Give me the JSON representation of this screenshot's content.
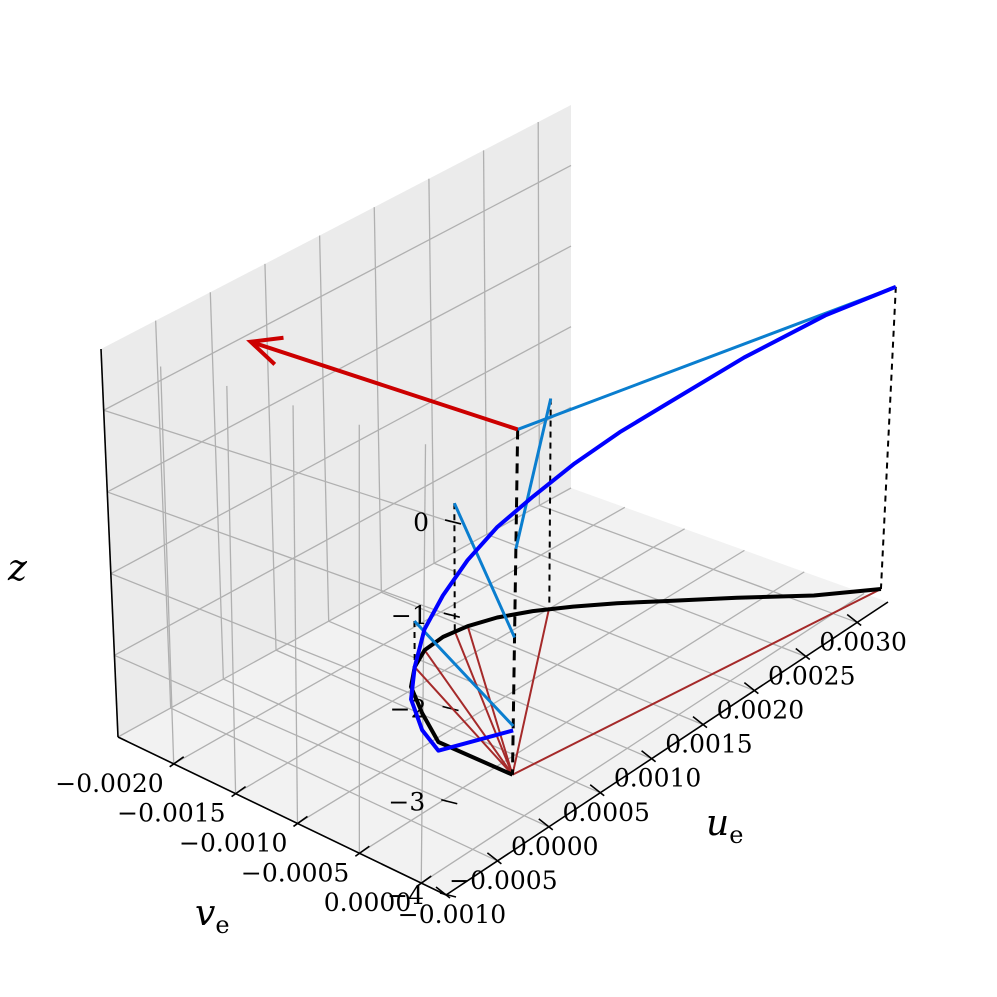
{
  "chart_data": {
    "type": "line3d",
    "xlabel": {
      "main": "u",
      "sub": "e"
    },
    "ylabel": {
      "main": "v",
      "sub": "e"
    },
    "zlabel": "z",
    "x_ticks": [
      "−0.0010",
      "−0.0005",
      "0.0000",
      "0.0005",
      "0.0010",
      "0.0015",
      "0.0020",
      "0.0025",
      "0.0030"
    ],
    "y_ticks": [
      "0.0000",
      "−0.0005",
      "−0.0010",
      "−0.0015",
      "−0.0020"
    ],
    "z_ticks": [
      "0",
      "−1",
      "−2",
      "−3",
      "−4"
    ],
    "xlim": [
      -0.001,
      0.0033
    ],
    "ylim": [
      -0.00245,
      0.0002
    ],
    "zlim": [
      -4,
      0.75
    ],
    "grid": true,
    "colors": {
      "spiral": "#0000ff",
      "projection": "#000000",
      "vectors": "#0a7ecf",
      "hodograph_rays": "#a52a2a",
      "surface_arrow": "#cc0000"
    },
    "series": [
      {
        "role": "current-spiral",
        "u": [
          0.0,
          0.0,
          0.0002,
          0.0004,
          0.0006,
          0.0008,
          0.001,
          0.0012,
          0.0014,
          0.0016,
          0.0018,
          0.002,
          0.0022,
          0.0025,
          0.0028,
          0.0031
        ],
        "v": [
          -0.0001,
          -0.0007,
          -0.001,
          -0.00126,
          -0.0014,
          -0.00149,
          -0.00151,
          -0.00148,
          -0.00141,
          -0.00129,
          -0.00113,
          -0.00094,
          -0.00072,
          -0.00038,
          0.0,
          0.0003
        ],
        "z": [
          -3.1,
          -3.7,
          -3.8,
          -3.75,
          -3.6,
          -3.35,
          -3.1,
          -2.8,
          -2.5,
          -2.2,
          -1.85,
          -1.5,
          -1.15,
          -0.6,
          -0.05,
          0.3
        ]
      },
      {
        "role": "surface-projection",
        "u": [
          0.0,
          0.0,
          0.0002,
          0.0004,
          0.0006,
          0.0008,
          0.001,
          0.0012,
          0.0014,
          0.0016,
          0.0018,
          0.002,
          0.0022,
          0.0025,
          0.0028,
          0.0031
        ],
        "v": [
          -0.0001,
          -0.0007,
          -0.001,
          -0.00126,
          -0.0014,
          -0.00149,
          -0.00151,
          -0.00148,
          -0.00141,
          -0.00129,
          -0.00113,
          -0.00094,
          -0.00072,
          -0.00038,
          0.0,
          0.0003
        ],
        "z": [
          -3.6,
          -3.6,
          -3.6,
          -3.6,
          -3.6,
          -3.6,
          -3.6,
          -3.6,
          -3.6,
          -3.6,
          -3.6,
          -3.6,
          -3.6,
          -3.6,
          -3.6,
          -3.6
        ]
      }
    ],
    "depth_samples": [
      {
        "u": 0.0031,
        "v": 0.0003,
        "z": 0.3
      },
      {
        "u": 0.0017,
        "v": -0.00124,
        "z": -1.05
      },
      {
        "u": 0.0011,
        "v": -0.0015,
        "z": -2.05
      },
      {
        "u": 0.0006,
        "v": -0.0014,
        "z": -3.05
      }
    ],
    "surface_arrow": {
      "u0": 0.0,
      "v0": -0.0001,
      "z0": 0.3,
      "u1": 0.0,
      "v1": -0.00215,
      "z1": 0.3
    },
    "vertical_axis_line": {
      "u": 0.0,
      "v": -0.0001,
      "z_top": 0.3,
      "z_bottom": -3.6
    },
    "ray_origin": {
      "u": 0.0,
      "v": -0.0001,
      "z": -3.6
    }
  }
}
